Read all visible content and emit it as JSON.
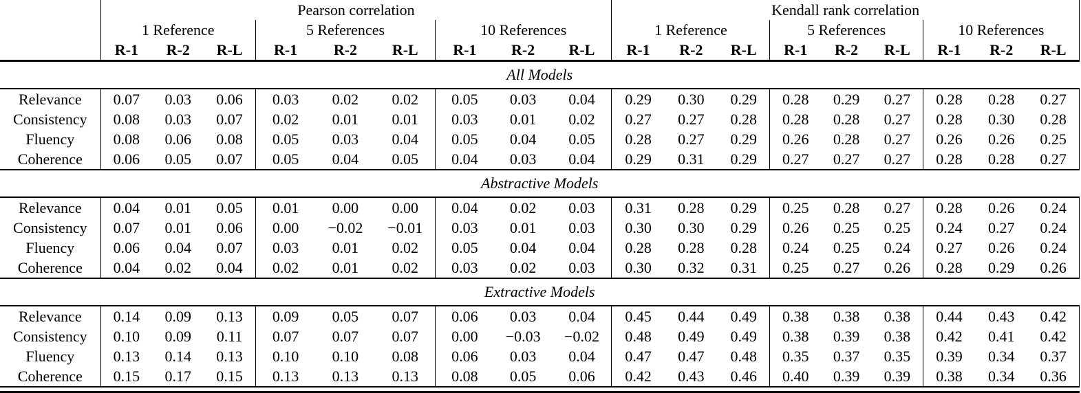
{
  "colors": {
    "text": "#000000",
    "background": "#ffffff",
    "rule": "#000000"
  },
  "table": {
    "groups": [
      {
        "label": "Pearson correlation",
        "refs": [
          "1 Reference",
          "5 References",
          "10 References"
        ]
      },
      {
        "label": "Kendall rank correlation",
        "refs": [
          "1 Reference",
          "5 References",
          "10 References"
        ]
      }
    ],
    "metrics": [
      "R-1",
      "R-2",
      "R-L"
    ],
    "sections": [
      {
        "title": "All Models",
        "rows": [
          {
            "label": "Relevance",
            "values": [
              "0.07",
              "0.03",
              "0.06",
              "0.03",
              "0.02",
              "0.02",
              "0.05",
              "0.03",
              "0.04",
              "0.29",
              "0.30",
              "0.29",
              "0.28",
              "0.29",
              "0.27",
              "0.28",
              "0.28",
              "0.27"
            ]
          },
          {
            "label": "Consistency",
            "values": [
              "0.08",
              "0.03",
              "0.07",
              "0.02",
              "0.01",
              "0.01",
              "0.03",
              "0.01",
              "0.02",
              "0.27",
              "0.27",
              "0.28",
              "0.28",
              "0.28",
              "0.27",
              "0.28",
              "0.30",
              "0.28"
            ]
          },
          {
            "label": "Fluency",
            "values": [
              "0.08",
              "0.06",
              "0.08",
              "0.05",
              "0.03",
              "0.04",
              "0.05",
              "0.04",
              "0.05",
              "0.28",
              "0.27",
              "0.29",
              "0.26",
              "0.28",
              "0.27",
              "0.26",
              "0.26",
              "0.25"
            ]
          },
          {
            "label": "Coherence",
            "values": [
              "0.06",
              "0.05",
              "0.07",
              "0.05",
              "0.04",
              "0.05",
              "0.04",
              "0.03",
              "0.04",
              "0.29",
              "0.31",
              "0.29",
              "0.27",
              "0.27",
              "0.27",
              "0.28",
              "0.28",
              "0.27"
            ]
          }
        ]
      },
      {
        "title": "Abstractive Models",
        "rows": [
          {
            "label": "Relevance",
            "values": [
              "0.04",
              "0.01",
              "0.05",
              "0.01",
              "0.00",
              "0.00",
              "0.04",
              "0.02",
              "0.03",
              "0.31",
              "0.28",
              "0.29",
              "0.25",
              "0.28",
              "0.27",
              "0.28",
              "0.26",
              "0.24"
            ]
          },
          {
            "label": "Consistency",
            "values": [
              "0.07",
              "0.01",
              "0.06",
              "0.00",
              "−0.02",
              "−0.01",
              "0.03",
              "0.01",
              "0.03",
              "0.30",
              "0.30",
              "0.29",
              "0.26",
              "0.25",
              "0.25",
              "0.24",
              "0.27",
              "0.24"
            ]
          },
          {
            "label": "Fluency",
            "values": [
              "0.06",
              "0.04",
              "0.07",
              "0.03",
              "0.01",
              "0.02",
              "0.05",
              "0.04",
              "0.04",
              "0.28",
              "0.28",
              "0.28",
              "0.24",
              "0.25",
              "0.24",
              "0.27",
              "0.26",
              "0.24"
            ]
          },
          {
            "label": "Coherence",
            "values": [
              "0.04",
              "0.02",
              "0.04",
              "0.02",
              "0.01",
              "0.02",
              "0.03",
              "0.02",
              "0.03",
              "0.30",
              "0.32",
              "0.31",
              "0.25",
              "0.27",
              "0.26",
              "0.28",
              "0.29",
              "0.26"
            ]
          }
        ]
      },
      {
        "title": "Extractive Models",
        "rows": [
          {
            "label": "Relevance",
            "values": [
              "0.14",
              "0.09",
              "0.13",
              "0.09",
              "0.05",
              "0.07",
              "0.06",
              "0.03",
              "0.04",
              "0.45",
              "0.44",
              "0.49",
              "0.38",
              "0.38",
              "0.38",
              "0.44",
              "0.43",
              "0.42"
            ]
          },
          {
            "label": "Consistency",
            "values": [
              "0.10",
              "0.09",
              "0.11",
              "0.07",
              "0.07",
              "0.07",
              "0.00",
              "−0.03",
              "−0.02",
              "0.48",
              "0.49",
              "0.49",
              "0.38",
              "0.39",
              "0.38",
              "0.42",
              "0.41",
              "0.42"
            ]
          },
          {
            "label": "Fluency",
            "values": [
              "0.13",
              "0.14",
              "0.13",
              "0.10",
              "0.10",
              "0.08",
              "0.06",
              "0.03",
              "0.04",
              "0.47",
              "0.47",
              "0.48",
              "0.35",
              "0.37",
              "0.35",
              "0.39",
              "0.34",
              "0.37"
            ]
          },
          {
            "label": "Coherence",
            "values": [
              "0.15",
              "0.17",
              "0.15",
              "0.13",
              "0.13",
              "0.13",
              "0.08",
              "0.05",
              "0.06",
              "0.42",
              "0.43",
              "0.46",
              "0.40",
              "0.39",
              "0.39",
              "0.38",
              "0.34",
              "0.36"
            ]
          }
        ]
      }
    ]
  }
}
